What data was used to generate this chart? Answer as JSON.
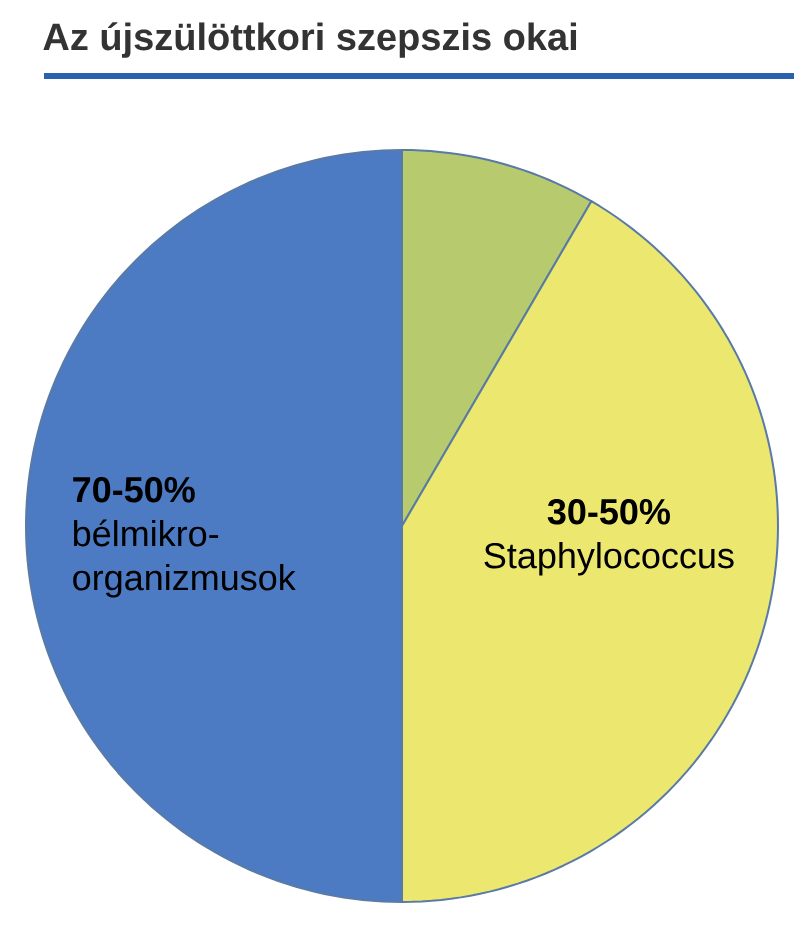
{
  "chart_data": {
    "type": "pie",
    "title": "Az újszülöttkori szepszis okai",
    "categories": [
      null,
      "**30-50%** Staphylococcus",
      "**70-50%** bélmikro-organizmusok"
    ],
    "values": [
      8.4,
      41.6,
      50
    ],
    "colors": [
      "#b7cb6e",
      "#ebe76f",
      "#4c7bc4"
    ]
  }
}
